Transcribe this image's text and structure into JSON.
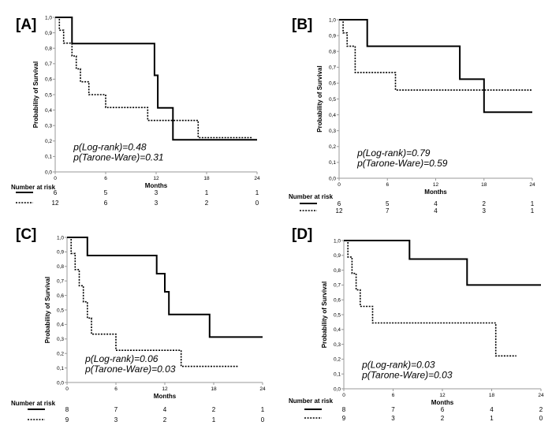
{
  "figure": {
    "risk_title": "Number at risk"
  },
  "chart_data": [
    {
      "panel": "[A]",
      "type": "line",
      "xlabel": "Months",
      "ylabel": "Probability of Survival",
      "xlim": [
        0,
        24
      ],
      "ylim": [
        0.0,
        1.0
      ],
      "x_ticks": [
        "0",
        "6",
        "12",
        "18",
        "24"
      ],
      "y_ticks": [
        "0,0",
        "0,1",
        "0,2",
        "0,3",
        "0,4",
        "0,5",
        "0,6",
        "0,7",
        "0,8",
        "0,9",
        "1,0"
      ],
      "annotations": [
        "p(Log-rank)=0.48",
        "p(Tarone-Ware)=0.31"
      ],
      "series": [
        {
          "style": "solid",
          "x": [
            0,
            2,
            11.8,
            12.2,
            14,
            24
          ],
          "y": [
            1.0,
            0.83,
            0.625,
            0.415,
            0.208,
            0.208
          ]
        },
        {
          "style": "dotted",
          "x": [
            0,
            0.5,
            1,
            2,
            2.5,
            3,
            4,
            6,
            11,
            17,
            23.5
          ],
          "y": [
            1.0,
            0.917,
            0.833,
            0.75,
            0.667,
            0.583,
            0.5,
            0.417,
            0.333,
            0.222,
            0.222
          ]
        }
      ],
      "risk_table": {
        "times": [
          0,
          6,
          12,
          18,
          24
        ],
        "rows": [
          [
            "6",
            "5",
            "3",
            "1",
            "1"
          ],
          [
            "12",
            "6",
            "3",
            "2",
            "0"
          ]
        ]
      }
    },
    {
      "panel": "[B]",
      "type": "line",
      "xlabel": "Months",
      "ylabel": "Probability of Survival",
      "xlim": [
        0,
        24
      ],
      "ylim": [
        0.0,
        1.0
      ],
      "x_ticks": [
        "0",
        "6",
        "12",
        "18",
        "24"
      ],
      "y_ticks": [
        "0,0",
        "0,1",
        "0,2",
        "0,3",
        "0,4",
        "0,5",
        "0,6",
        "0,7",
        "0,8",
        "0,9",
        "1,0"
      ],
      "annotations": [
        "p(Log-rank)=0.79",
        "p(Tarone-Ware)=0.59"
      ],
      "series": [
        {
          "style": "solid",
          "x": [
            0,
            3.5,
            15,
            18,
            24
          ],
          "y": [
            1.0,
            0.833,
            0.625,
            0.417,
            0.417
          ]
        },
        {
          "style": "dotted",
          "x": [
            0,
            0.5,
            1,
            2,
            7,
            24
          ],
          "y": [
            1.0,
            0.917,
            0.833,
            0.667,
            0.556,
            0.556
          ]
        }
      ],
      "risk_table": {
        "times": [
          0,
          6,
          12,
          18,
          24
        ],
        "rows": [
          [
            "6",
            "5",
            "4",
            "2",
            "1"
          ],
          [
            "12",
            "7",
            "4",
            "3",
            "1"
          ]
        ]
      }
    },
    {
      "panel": "[C]",
      "type": "line",
      "xlabel": "Months",
      "ylabel": "Probability of Survival",
      "xlim": [
        0,
        24
      ],
      "ylim": [
        0.0,
        1.0
      ],
      "x_ticks": [
        "0",
        "6",
        "12",
        "18",
        "24"
      ],
      "y_ticks": [
        "0,0",
        "0,1",
        "0,2",
        "0,3",
        "0,4",
        "0,5",
        "0,6",
        "0,7",
        "0,8",
        "0,9",
        "1,0"
      ],
      "annotations": [
        "p(Log-rank)=0.06",
        "p(Tarone-Ware)=0.03"
      ],
      "series": [
        {
          "style": "solid",
          "x": [
            0,
            2.5,
            11,
            12,
            12.5,
            17.5,
            24
          ],
          "y": [
            1.0,
            0.875,
            0.75,
            0.625,
            0.469,
            0.313,
            0.313
          ]
        },
        {
          "style": "dotted",
          "x": [
            0,
            0.5,
            1,
            1.5,
            2,
            2.5,
            3,
            4,
            6,
            14,
            21
          ],
          "y": [
            1.0,
            0.889,
            0.778,
            0.667,
            0.556,
            0.444,
            0.333,
            0.333,
            0.222,
            0.111,
            0.111
          ]
        }
      ],
      "risk_table": {
        "times": [
          0,
          6,
          12,
          18,
          24
        ],
        "rows": [
          [
            "8",
            "7",
            "4",
            "2",
            "1"
          ],
          [
            "9",
            "3",
            "2",
            "1",
            "0"
          ]
        ]
      }
    },
    {
      "panel": "[D]",
      "type": "line",
      "xlabel": "Months",
      "ylabel": "Probability of Survival",
      "xlim": [
        0,
        24
      ],
      "ylim": [
        0.0,
        1.0
      ],
      "x_ticks": [
        "0",
        "6",
        "12",
        "18",
        "24"
      ],
      "y_ticks": [
        "0,0",
        "0,1",
        "0,2",
        "0,3",
        "0,4",
        "0,5",
        "0,6",
        "0,7",
        "0,8",
        "0,9",
        "1,0"
      ],
      "annotations": [
        "p(Log-rank)=0.03",
        "p(Tarone-Ware)=0.03"
      ],
      "series": [
        {
          "style": "solid",
          "x": [
            0,
            8,
            15,
            24
          ],
          "y": [
            1.0,
            0.875,
            0.7,
            0.7
          ]
        },
        {
          "style": "dotted",
          "x": [
            0,
            0.5,
            1,
            1.5,
            2,
            3.5,
            18.5,
            21
          ],
          "y": [
            1.0,
            0.889,
            0.778,
            0.667,
            0.556,
            0.444,
            0.222,
            0.222
          ]
        }
      ],
      "risk_table": {
        "times": [
          0,
          6,
          12,
          18,
          24
        ],
        "rows": [
          [
            "8",
            "7",
            "6",
            "4",
            "2"
          ],
          [
            "9",
            "3",
            "2",
            "1",
            "0"
          ]
        ]
      }
    }
  ]
}
